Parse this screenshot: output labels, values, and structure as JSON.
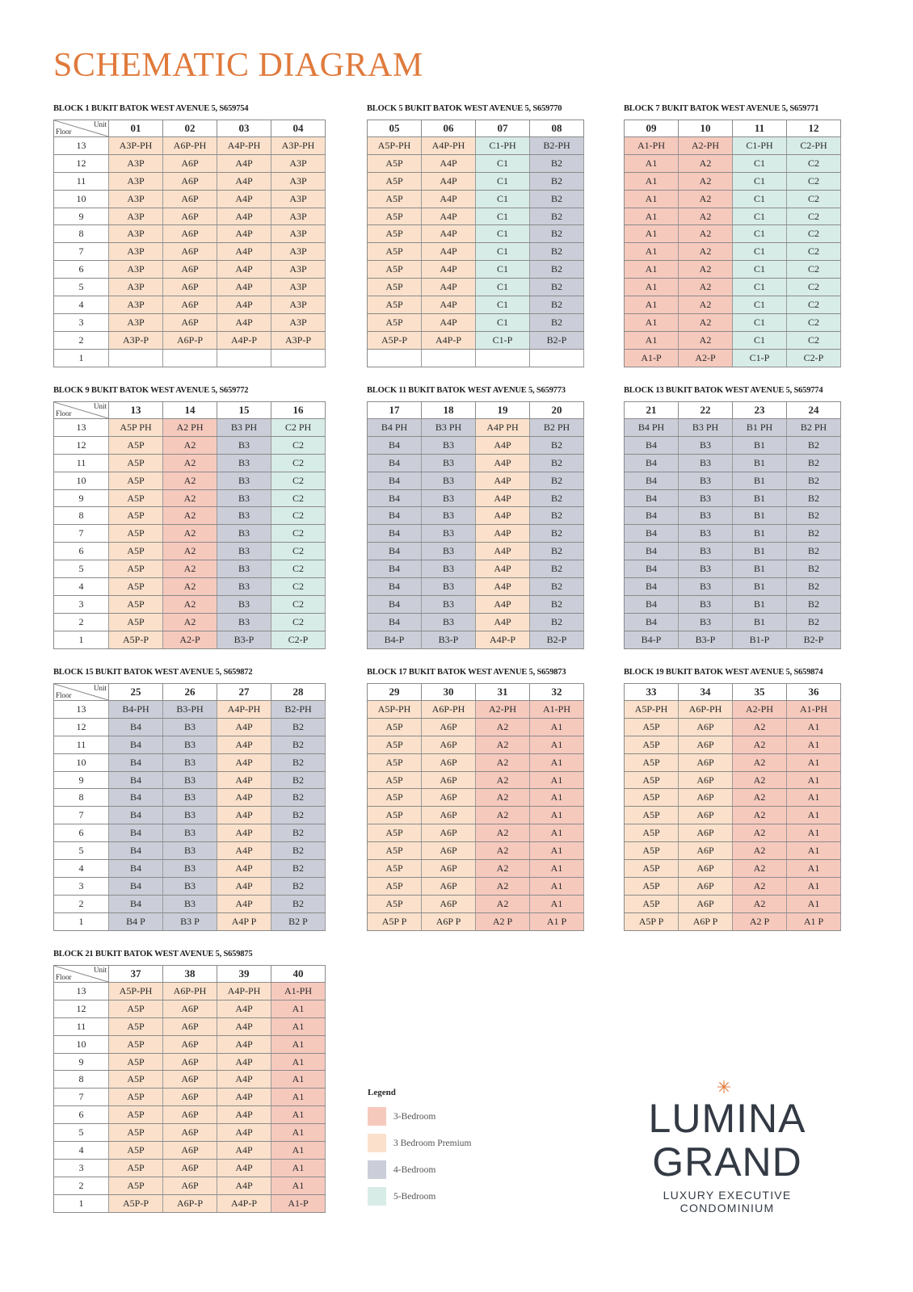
{
  "title": "SCHEMATIC DIAGRAM",
  "header": {
    "unit": "Unit",
    "floor": "Floor"
  },
  "colors": {
    "3-Bedroom": "#f6c9bd",
    "3-Bedroom Premium": "#fbe1cb",
    "4-Bedroom": "#cbced8",
    "5-Bedroom": "#d7ece7"
  },
  "blocks": [
    {
      "caption": "BLOCK 1 BUKIT BATOK WEST AVENUE 5, S659754",
      "show_floor": true,
      "units": [
        "01",
        "02",
        "03",
        "04"
      ],
      "floors": [
        "13",
        "12",
        "11",
        "10",
        "9",
        "8",
        "7",
        "6",
        "5",
        "4",
        "3",
        "2",
        "1"
      ],
      "cols": [
        {
          "type": "peach",
          "cells": [
            "A3P-PH",
            "A3P",
            "A3P",
            "A3P",
            "A3P",
            "A3P",
            "A3P",
            "A3P",
            "A3P",
            "A3P",
            "A3P",
            "A3P-P",
            ""
          ]
        },
        {
          "type": "peach",
          "cells": [
            "A6P-PH",
            "A6P",
            "A6P",
            "A6P",
            "A6P",
            "A6P",
            "A6P",
            "A6P",
            "A6P",
            "A6P",
            "A6P",
            "A6P-P",
            ""
          ]
        },
        {
          "type": "peach",
          "cells": [
            "A4P-PH",
            "A4P",
            "A4P",
            "A4P",
            "A4P",
            "A4P",
            "A4P",
            "A4P",
            "A4P",
            "A4P",
            "A4P",
            "A4P-P",
            ""
          ]
        },
        {
          "type": "peach",
          "cells": [
            "A3P-PH",
            "A3P",
            "A3P",
            "A3P",
            "A3P",
            "A3P",
            "A3P",
            "A3P",
            "A3P",
            "A3P",
            "A3P",
            "A3P-P",
            ""
          ]
        }
      ]
    },
    {
      "caption": "BLOCK 5 BUKIT BATOK WEST AVENUE 5, S659770",
      "show_floor": false,
      "units": [
        "05",
        "06",
        "07",
        "08"
      ],
      "floors": [
        "13",
        "12",
        "11",
        "10",
        "9",
        "8",
        "7",
        "6",
        "5",
        "4",
        "3",
        "2",
        "1"
      ],
      "cols": [
        {
          "type": "peach",
          "cells": [
            "A5P-PH",
            "A5P",
            "A5P",
            "A5P",
            "A5P",
            "A5P",
            "A5P",
            "A5P",
            "A5P",
            "A5P",
            "A5P",
            "A5P-P",
            ""
          ]
        },
        {
          "type": "peach",
          "cells": [
            "A4P-PH",
            "A4P",
            "A4P",
            "A4P",
            "A4P",
            "A4P",
            "A4P",
            "A4P",
            "A4P",
            "A4P",
            "A4P",
            "A4P-P",
            ""
          ]
        },
        {
          "type": "mint",
          "cells": [
            "C1-PH",
            "C1",
            "C1",
            "C1",
            "C1",
            "C1",
            "C1",
            "C1",
            "C1",
            "C1",
            "C1",
            "C1-P",
            ""
          ]
        },
        {
          "type": "grey",
          "cells": [
            "B2-PH",
            "B2",
            "B2",
            "B2",
            "B2",
            "B2",
            "B2",
            "B2",
            "B2",
            "B2",
            "B2",
            "B2-P",
            ""
          ]
        }
      ]
    },
    {
      "caption": "BLOCK 7 BUKIT BATOK WEST AVENUE 5, S659771",
      "show_floor": false,
      "units": [
        "09",
        "10",
        "11",
        "12"
      ],
      "floors": [
        "13",
        "12",
        "11",
        "10",
        "9",
        "8",
        "7",
        "6",
        "5",
        "4",
        "3",
        "2",
        "1"
      ],
      "cols": [
        {
          "type": "red",
          "cells": [
            "A1-PH",
            "A1",
            "A1",
            "A1",
            "A1",
            "A1",
            "A1",
            "A1",
            "A1",
            "A1",
            "A1",
            "A1",
            "A1-P"
          ]
        },
        {
          "type": "red",
          "cells": [
            "A2-PH",
            "A2",
            "A2",
            "A2",
            "A2",
            "A2",
            "A2",
            "A2",
            "A2",
            "A2",
            "A2",
            "A2",
            "A2-P"
          ]
        },
        {
          "type": "mint",
          "cells": [
            "C1-PH",
            "C1",
            "C1",
            "C1",
            "C1",
            "C1",
            "C1",
            "C1",
            "C1",
            "C1",
            "C1",
            "C1",
            "C1-P"
          ]
        },
        {
          "type": "mint",
          "cells": [
            "C2-PH",
            "C2",
            "C2",
            "C2",
            "C2",
            "C2",
            "C2",
            "C2",
            "C2",
            "C2",
            "C2",
            "C2",
            "C2-P"
          ]
        }
      ]
    },
    {
      "caption": "BLOCK 9 BUKIT BATOK WEST AVENUE 5, S659772",
      "show_floor": true,
      "units": [
        "13",
        "14",
        "15",
        "16"
      ],
      "floors": [
        "13",
        "12",
        "11",
        "10",
        "9",
        "8",
        "7",
        "6",
        "5",
        "4",
        "3",
        "2",
        "1"
      ],
      "cols": [
        {
          "type": "peach",
          "cells": [
            "A5P PH",
            "A5P",
            "A5P",
            "A5P",
            "A5P",
            "A5P",
            "A5P",
            "A5P",
            "A5P",
            "A5P",
            "A5P",
            "A5P",
            "A5P-P"
          ]
        },
        {
          "type": "red",
          "cells": [
            "A2 PH",
            "A2",
            "A2",
            "A2",
            "A2",
            "A2",
            "A2",
            "A2",
            "A2",
            "A2",
            "A2",
            "A2",
            "A2-P"
          ]
        },
        {
          "type": "grey",
          "cells": [
            "B3 PH",
            "B3",
            "B3",
            "B3",
            "B3",
            "B3",
            "B3",
            "B3",
            "B3",
            "B3",
            "B3",
            "B3",
            "B3-P"
          ]
        },
        {
          "type": "mint",
          "cells": [
            "C2 PH",
            "C2",
            "C2",
            "C2",
            "C2",
            "C2",
            "C2",
            "C2",
            "C2",
            "C2",
            "C2",
            "C2",
            "C2-P"
          ]
        }
      ]
    },
    {
      "caption": "BLOCK 11 BUKIT BATOK WEST AVENUE 5, S659773",
      "show_floor": false,
      "units": [
        "17",
        "18",
        "19",
        "20"
      ],
      "floors": [
        "13",
        "12",
        "11",
        "10",
        "9",
        "8",
        "7",
        "6",
        "5",
        "4",
        "3",
        "2",
        "1"
      ],
      "cols": [
        {
          "type": "grey",
          "cells": [
            "B4 PH",
            "B4",
            "B4",
            "B4",
            "B4",
            "B4",
            "B4",
            "B4",
            "B4",
            "B4",
            "B4",
            "B4",
            "B4-P"
          ]
        },
        {
          "type": "grey",
          "cells": [
            "B3 PH",
            "B3",
            "B3",
            "B3",
            "B3",
            "B3",
            "B3",
            "B3",
            "B3",
            "B3",
            "B3",
            "B3",
            "B3-P"
          ]
        },
        {
          "type": "peach",
          "cells": [
            "A4P PH",
            "A4P",
            "A4P",
            "A4P",
            "A4P",
            "A4P",
            "A4P",
            "A4P",
            "A4P",
            "A4P",
            "A4P",
            "A4P",
            "A4P-P"
          ]
        },
        {
          "type": "grey",
          "cells": [
            "B2 PH",
            "B2",
            "B2",
            "B2",
            "B2",
            "B2",
            "B2",
            "B2",
            "B2",
            "B2",
            "B2",
            "B2",
            "B2-P"
          ]
        }
      ]
    },
    {
      "caption": "BLOCK 13 BUKIT BATOK WEST AVENUE 5, S659774",
      "show_floor": false,
      "units": [
        "21",
        "22",
        "23",
        "24"
      ],
      "floors": [
        "13",
        "12",
        "11",
        "10",
        "9",
        "8",
        "7",
        "6",
        "5",
        "4",
        "3",
        "2",
        "1"
      ],
      "cols": [
        {
          "type": "grey",
          "cells": [
            "B4 PH",
            "B4",
            "B4",
            "B4",
            "B4",
            "B4",
            "B4",
            "B4",
            "B4",
            "B4",
            "B4",
            "B4",
            "B4-P"
          ]
        },
        {
          "type": "grey",
          "cells": [
            "B3 PH",
            "B3",
            "B3",
            "B3",
            "B3",
            "B3",
            "B3",
            "B3",
            "B3",
            "B3",
            "B3",
            "B3",
            "B3-P"
          ]
        },
        {
          "type": "grey",
          "cells": [
            "B1 PH",
            "B1",
            "B1",
            "B1",
            "B1",
            "B1",
            "B1",
            "B1",
            "B1",
            "B1",
            "B1",
            "B1",
            "B1-P"
          ]
        },
        {
          "type": "grey",
          "cells": [
            "B2 PH",
            "B2",
            "B2",
            "B2",
            "B2",
            "B2",
            "B2",
            "B2",
            "B2",
            "B2",
            "B2",
            "B2",
            "B2-P"
          ]
        }
      ]
    },
    {
      "caption": "BLOCK 15 BUKIT BATOK WEST AVENUE 5, S659872",
      "show_floor": true,
      "units": [
        "25",
        "26",
        "27",
        "28"
      ],
      "floors": [
        "13",
        "12",
        "11",
        "10",
        "9",
        "8",
        "7",
        "6",
        "5",
        "4",
        "3",
        "2",
        "1"
      ],
      "cols": [
        {
          "type": "grey",
          "cells": [
            "B4-PH",
            "B4",
            "B4",
            "B4",
            "B4",
            "B4",
            "B4",
            "B4",
            "B4",
            "B4",
            "B4",
            "B4",
            "B4 P"
          ]
        },
        {
          "type": "grey",
          "cells": [
            "B3-PH",
            "B3",
            "B3",
            "B3",
            "B3",
            "B3",
            "B3",
            "B3",
            "B3",
            "B3",
            "B3",
            "B3",
            "B3 P"
          ]
        },
        {
          "type": "peach",
          "cells": [
            "A4P-PH",
            "A4P",
            "A4P",
            "A4P",
            "A4P",
            "A4P",
            "A4P",
            "A4P",
            "A4P",
            "A4P",
            "A4P",
            "A4P",
            "A4P P"
          ]
        },
        {
          "type": "grey",
          "cells": [
            "B2-PH",
            "B2",
            "B2",
            "B2",
            "B2",
            "B2",
            "B2",
            "B2",
            "B2",
            "B2",
            "B2",
            "B2",
            "B2 P"
          ]
        }
      ]
    },
    {
      "caption": "BLOCK 17 BUKIT BATOK WEST AVENUE 5, S659873",
      "show_floor": false,
      "units": [
        "29",
        "30",
        "31",
        "32"
      ],
      "floors": [
        "13",
        "12",
        "11",
        "10",
        "9",
        "8",
        "7",
        "6",
        "5",
        "4",
        "3",
        "2",
        "1"
      ],
      "cols": [
        {
          "type": "peach",
          "cells": [
            "A5P-PH",
            "A5P",
            "A5P",
            "A5P",
            "A5P",
            "A5P",
            "A5P",
            "A5P",
            "A5P",
            "A5P",
            "A5P",
            "A5P",
            "A5P P"
          ]
        },
        {
          "type": "peach",
          "cells": [
            "A6P-PH",
            "A6P",
            "A6P",
            "A6P",
            "A6P",
            "A6P",
            "A6P",
            "A6P",
            "A6P",
            "A6P",
            "A6P",
            "A6P",
            "A6P P"
          ]
        },
        {
          "type": "red",
          "cells": [
            "A2-PH",
            "A2",
            "A2",
            "A2",
            "A2",
            "A2",
            "A2",
            "A2",
            "A2",
            "A2",
            "A2",
            "A2",
            "A2 P"
          ]
        },
        {
          "type": "red",
          "cells": [
            "A1-PH",
            "A1",
            "A1",
            "A1",
            "A1",
            "A1",
            "A1",
            "A1",
            "A1",
            "A1",
            "A1",
            "A1",
            "A1 P"
          ]
        }
      ]
    },
    {
      "caption": "BLOCK 19 BUKIT BATOK WEST AVENUE 5, S659874",
      "show_floor": false,
      "units": [
        "33",
        "34",
        "35",
        "36"
      ],
      "floors": [
        "13",
        "12",
        "11",
        "10",
        "9",
        "8",
        "7",
        "6",
        "5",
        "4",
        "3",
        "2",
        "1"
      ],
      "cols": [
        {
          "type": "peach",
          "cells": [
            "A5P-PH",
            "A5P",
            "A5P",
            "A5P",
            "A5P",
            "A5P",
            "A5P",
            "A5P",
            "A5P",
            "A5P",
            "A5P",
            "A5P",
            "A5P P"
          ]
        },
        {
          "type": "peach",
          "cells": [
            "A6P-PH",
            "A6P",
            "A6P",
            "A6P",
            "A6P",
            "A6P",
            "A6P",
            "A6P",
            "A6P",
            "A6P",
            "A6P",
            "A6P",
            "A6P P"
          ]
        },
        {
          "type": "red",
          "cells": [
            "A2-PH",
            "A2",
            "A2",
            "A2",
            "A2",
            "A2",
            "A2",
            "A2",
            "A2",
            "A2",
            "A2",
            "A2",
            "A2 P"
          ]
        },
        {
          "type": "red",
          "cells": [
            "A1-PH",
            "A1",
            "A1",
            "A1",
            "A1",
            "A1",
            "A1",
            "A1",
            "A1",
            "A1",
            "A1",
            "A1",
            "A1 P"
          ]
        }
      ]
    },
    {
      "caption": "BLOCK 21 BUKIT BATOK WEST AVENUE 5, S659875",
      "show_floor": true,
      "units": [
        "37",
        "38",
        "39",
        "40"
      ],
      "floors": [
        "13",
        "12",
        "11",
        "10",
        "9",
        "8",
        "7",
        "6",
        "5",
        "4",
        "3",
        "2",
        "1"
      ],
      "cols": [
        {
          "type": "peach",
          "cells": [
            "A5P-PH",
            "A5P",
            "A5P",
            "A5P",
            "A5P",
            "A5P",
            "A5P",
            "A5P",
            "A5P",
            "A5P",
            "A5P",
            "A5P",
            "A5P-P"
          ]
        },
        {
          "type": "peach",
          "cells": [
            "A6P-PH",
            "A6P",
            "A6P",
            "A6P",
            "A6P",
            "A6P",
            "A6P",
            "A6P",
            "A6P",
            "A6P",
            "A6P",
            "A6P",
            "A6P-P"
          ]
        },
        {
          "type": "peach",
          "cells": [
            "A4P-PH",
            "A4P",
            "A4P",
            "A4P",
            "A4P",
            "A4P",
            "A4P",
            "A4P",
            "A4P",
            "A4P",
            "A4P",
            "A4P",
            "A4P-P"
          ]
        },
        {
          "type": "red",
          "cells": [
            "A1-PH",
            "A1",
            "A1",
            "A1",
            "A1",
            "A1",
            "A1",
            "A1",
            "A1",
            "A1",
            "A1",
            "A1",
            "A1-P"
          ]
        }
      ]
    }
  ],
  "legend": {
    "title": "Legend",
    "items": [
      {
        "label": "3-Bedroom",
        "type": "red"
      },
      {
        "label": "3 Bedroom Premium",
        "type": "peach"
      },
      {
        "label": "4-Bedroom",
        "type": "grey"
      },
      {
        "label": "5-Bedroom",
        "type": "mint"
      }
    ]
  },
  "logo": {
    "line1": "LUMINA",
    "line2": "GRAND",
    "tagline": "LUXURY EXECUTIVE CONDOMINIUM"
  }
}
